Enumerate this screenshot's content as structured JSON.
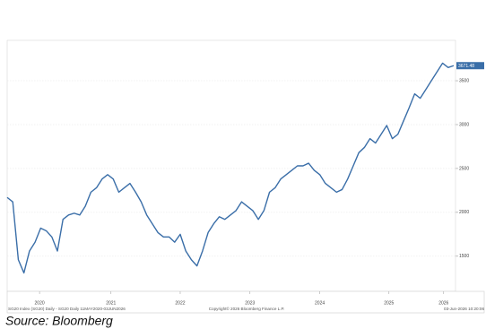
{
  "chart_data": {
    "type": "line",
    "color": "#3a6ea8",
    "values": [
      2170,
      2120,
      1460,
      1310,
      1560,
      1660,
      1820,
      1790,
      1720,
      1560,
      1920,
      1970,
      1990,
      1970,
      2070,
      2230,
      2280,
      2380,
      2430,
      2380,
      2230,
      2280,
      2330,
      2230,
      2120,
      1970,
      1870,
      1770,
      1720,
      1720,
      1660,
      1750,
      1560,
      1460,
      1390,
      1560,
      1770,
      1870,
      1950,
      1920,
      1970,
      2020,
      2120,
      2070,
      2020,
      1920,
      2020,
      2230,
      2280,
      2380,
      2430,
      2480,
      2530,
      2530,
      2560,
      2480,
      2430,
      2330,
      2280,
      2230,
      2260,
      2380,
      2530,
      2680,
      2740,
      2840,
      2790,
      2890,
      2990,
      2840,
      2890,
      3040,
      3190,
      3350,
      3300,
      3400,
      3500,
      3600,
      3700,
      3650,
      3671.48
    ],
    "xlim": [
      0,
      80
    ],
    "xticks": [
      {
        "value": 5.8,
        "label": "2020"
      },
      {
        "value": 18.6,
        "label": "2021"
      },
      {
        "value": 31.0,
        "label": "2022"
      },
      {
        "value": 43.5,
        "label": "2023"
      },
      {
        "value": 56.0,
        "label": "2024"
      },
      {
        "value": 68.4,
        "label": "2025"
      },
      {
        "value": 78.2,
        "label": "2026"
      }
    ],
    "ylim": [
      1100,
      3960
    ],
    "yticks": [
      1500,
      2000,
      2500,
      3000,
      3500
    ],
    "grid": true,
    "footer_left": "SG20 Index (SG20) Daily - SG20 Daily 11MAY2020-03JUN2026",
    "footer_center": "Copyright© 2026 Bloomberg Finance L.P.",
    "footer_right": "03-Jun-2026 10:20:06"
  },
  "source": "Source: Bloomberg"
}
